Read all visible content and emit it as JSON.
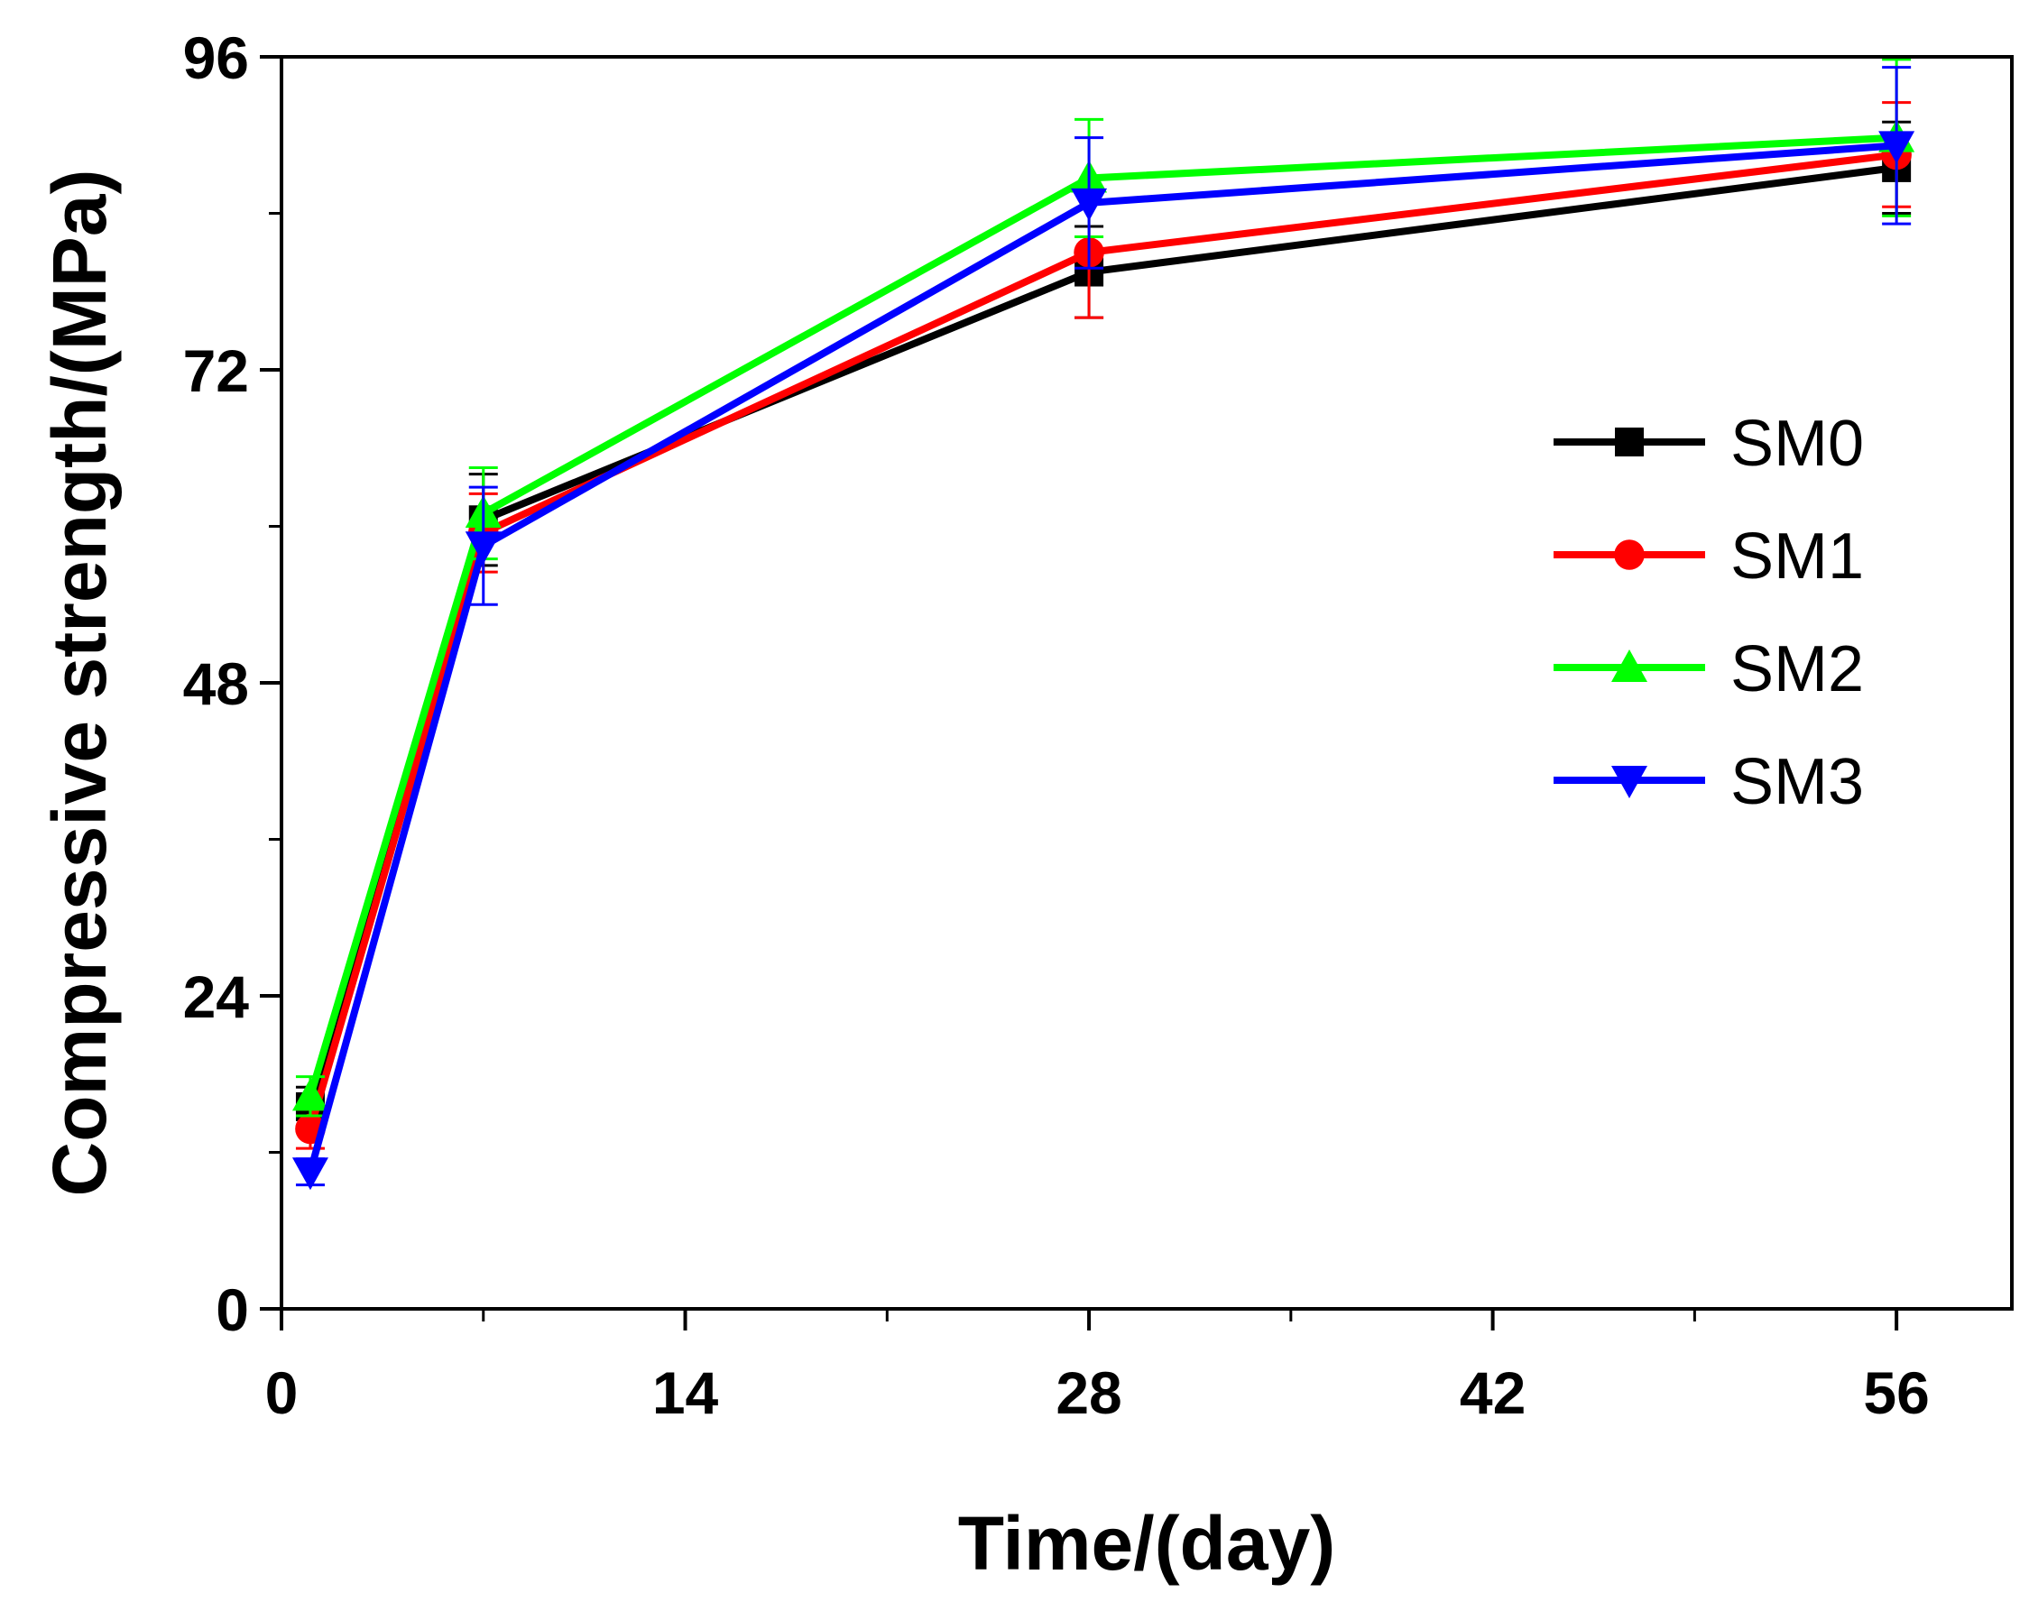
{
  "chart_data": {
    "type": "line",
    "title": "",
    "xlabel": "Time/(day)",
    "ylabel": "Compressive strength/(MPa)",
    "xlim": [
      0,
      60
    ],
    "ylim": [
      0,
      96
    ],
    "xticks": [
      0,
      14,
      28,
      42,
      56
    ],
    "yticks": [
      0,
      24,
      48,
      72,
      96
    ],
    "x_minor_step": 7,
    "y_minor_step": 12,
    "x": [
      1,
      7,
      28,
      56
    ],
    "grid": false,
    "legend_position": "right",
    "series": [
      {
        "name": "SM0",
        "color": "#000000",
        "marker": "square",
        "values": [
          15.5,
          60.5,
          79.5,
          87.5
        ],
        "errors": [
          1.5,
          3.5,
          3.5,
          3.5
        ]
      },
      {
        "name": "SM1",
        "color": "#ff0000",
        "marker": "circle",
        "values": [
          13.8,
          59.5,
          81,
          88.5
        ],
        "errors": [
          1.5,
          3,
          5,
          4
        ]
      },
      {
        "name": "SM2",
        "color": "#00ff00",
        "marker": "triangle-up",
        "values": [
          16.3,
          61,
          86.7,
          89.8
        ],
        "errors": [
          1.5,
          3.5,
          4.5,
          6
        ]
      },
      {
        "name": "SM3",
        "color": "#0000ff",
        "marker": "triangle-down",
        "values": [
          10.5,
          58.5,
          84.8,
          89.2
        ],
        "errors": [
          1,
          4.5,
          5,
          6
        ]
      }
    ]
  }
}
